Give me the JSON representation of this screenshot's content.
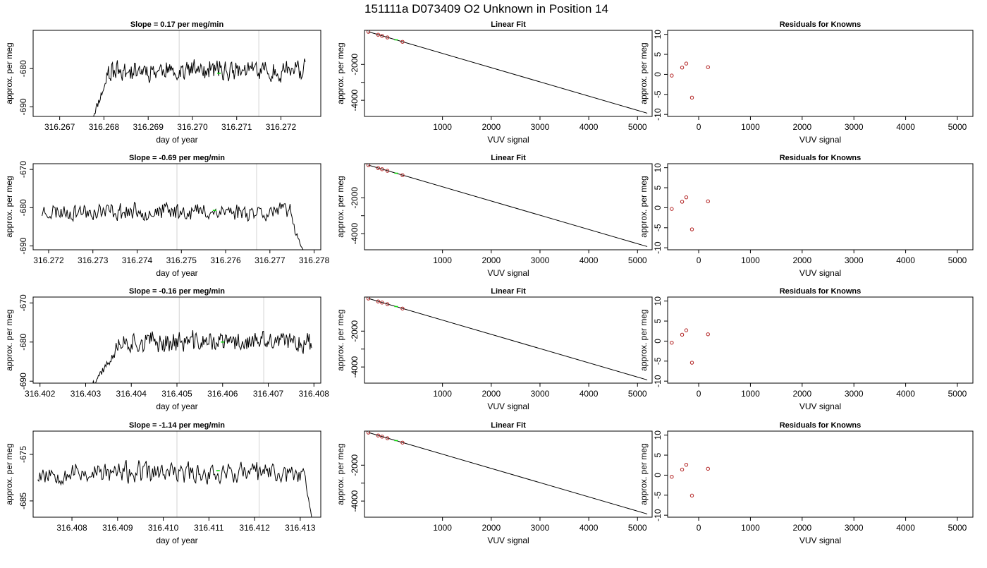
{
  "figure": {
    "title": "151111a      D073409   O2 Unknown in Position  14",
    "colors": {
      "line": "#000000",
      "gridline": "#d3d3d3",
      "known_point": "#b22222",
      "unknown_point": "#00dd00"
    }
  },
  "chart_data": [
    {
      "type": "line",
      "title": "Slope =  0.17  per meg/min",
      "xlabel": "day of year",
      "ylabel": "approx. per meg",
      "xlim": [
        316.2664,
        316.2729
      ],
      "ylim": [
        -692.5,
        -670.0
      ],
      "xticks": [
        316.267,
        316.268,
        316.269,
        316.27,
        316.271,
        316.272
      ],
      "xtick_labels": [
        "316.267",
        "316.268",
        "316.269",
        "316.270",
        "316.271",
        "316.272"
      ],
      "yticks": [
        -690,
        -680
      ],
      "ytick_labels": [
        "-690",
        "-680"
      ],
      "vlines": [
        316.2697,
        316.2715
      ],
      "marker": {
        "x": 316.2706,
        "y": -681.2
      },
      "series": [
        {
          "x_start": 316.26775,
          "x_end": 316.27255,
          "start_value": -692.5,
          "rise_to": 316.26805,
          "mean": -680.5,
          "tail": null,
          "end_value": null,
          "amp": 3.0,
          "seed": 11
        }
      ]
    },
    {
      "type": "scatter",
      "title": "Linear Fit",
      "xlabel": "VUV signal",
      "ylabel": "approx. per meg",
      "xlim": [
        -600,
        5300
      ],
      "ylim": [
        -4900,
        -100
      ],
      "xticks": [
        1000,
        2000,
        3000,
        4000,
        5000
      ],
      "xtick_labels": [
        "1000",
        "2000",
        "3000",
        "4000",
        "5000"
      ],
      "yticks": [
        -4000,
        -3000,
        -2000
      ],
      "ytick_labels": [
        "-4000",
        "",
        "-2000"
      ],
      "fit_line": {
        "x": [
          -520,
          5200
        ],
        "y": [
          -180,
          -4720
        ]
      },
      "knowns": {
        "x": [
          -520,
          -320,
          -240,
          -130,
          180
        ],
        "y": [
          -180,
          -343,
          -408,
          -495,
          -740
        ]
      },
      "unknown": {
        "x": 50,
        "y": -630
      }
    },
    {
      "type": "scatter",
      "title": "Residuals for Knowns",
      "xlabel": "VUV signal",
      "ylabel": "approx. per meg",
      "xlim": [
        -600,
        5300
      ],
      "ylim": [
        -10.5,
        11
      ],
      "xticks": [
        0,
        1000,
        2000,
        3000,
        4000,
        5000
      ],
      "xtick_labels": [
        "0",
        "1000",
        "2000",
        "3000",
        "4000",
        "5000"
      ],
      "yticks": [
        -10,
        -5,
        0,
        5,
        10
      ],
      "ytick_labels": [
        "-10",
        "-5",
        "0",
        "5",
        "10"
      ],
      "knowns": {
        "x": [
          -520,
          -320,
          -240,
          -130,
          180
        ],
        "y": [
          -0.3,
          1.7,
          2.7,
          -5.8,
          1.8
        ]
      }
    },
    {
      "type": "line",
      "title": "Slope =  -0.69  per meg/min",
      "xlabel": "day of year",
      "ylabel": "approx. per meg",
      "xlim": [
        316.27165,
        316.27815
      ],
      "ylim": [
        -691.0,
        -668.5
      ],
      "xticks": [
        316.272,
        316.273,
        316.274,
        316.275,
        316.276,
        316.277,
        316.278
      ],
      "xtick_labels": [
        "316.272",
        "316.273",
        "316.274",
        "316.275",
        "316.276",
        "316.277",
        "316.278"
      ],
      "yticks": [
        -690,
        -680,
        -670
      ],
      "ytick_labels": [
        "-690",
        "-680",
        "-670"
      ],
      "vlines": [
        316.2749,
        316.2767
      ],
      "marker": {
        "x": 316.27575,
        "y": -680.7
      },
      "series": [
        {
          "x_start": 316.27185,
          "x_end": 316.27775,
          "start_value": null,
          "rise_to": null,
          "mean": -681.0,
          "tail": 316.27745,
          "end_value": -691.0,
          "amp": 2.6,
          "seed": 23
        }
      ]
    },
    {
      "type": "scatter",
      "title": "Linear Fit",
      "xlabel": "VUV signal",
      "ylabel": "approx. per meg",
      "xlim": [
        -600,
        5300
      ],
      "ylim": [
        -4900,
        -100
      ],
      "xticks": [
        1000,
        2000,
        3000,
        4000,
        5000
      ],
      "xtick_labels": [
        "1000",
        "2000",
        "3000",
        "4000",
        "5000"
      ],
      "yticks": [
        -4000,
        -3000,
        -2000
      ],
      "ytick_labels": [
        "-4000",
        "",
        "-2000"
      ],
      "fit_line": {
        "x": [
          -520,
          5200
        ],
        "y": [
          -180,
          -4720
        ]
      },
      "knowns": {
        "x": [
          -520,
          -320,
          -240,
          -130,
          180
        ],
        "y": [
          -180,
          -343,
          -408,
          -495,
          -740
        ]
      },
      "unknown": {
        "x": 50,
        "y": -630
      }
    },
    {
      "type": "scatter",
      "title": "Residuals for Knowns",
      "xlabel": "VUV signal",
      "ylabel": "approx. per meg",
      "xlim": [
        -600,
        5300
      ],
      "ylim": [
        -10.5,
        11
      ],
      "xticks": [
        0,
        1000,
        2000,
        3000,
        4000,
        5000
      ],
      "xtick_labels": [
        "0",
        "1000",
        "2000",
        "3000",
        "4000",
        "5000"
      ],
      "yticks": [
        -10,
        -5,
        0,
        5,
        10
      ],
      "ytick_labels": [
        "-10",
        "-5",
        "0",
        "5",
        "10"
      ],
      "knowns": {
        "x": [
          -520,
          -320,
          -240,
          -130,
          180
        ],
        "y": [
          -0.3,
          1.5,
          2.6,
          -5.4,
          1.6
        ]
      }
    },
    {
      "type": "line",
      "title": "Slope =  -0.16  per meg/min",
      "xlabel": "day of year",
      "ylabel": "approx. per meg",
      "xlim": [
        316.40185,
        316.40815
      ],
      "ylim": [
        -690.5,
        -668.5
      ],
      "xticks": [
        316.402,
        316.403,
        316.404,
        316.405,
        316.406,
        316.407,
        316.408
      ],
      "xtick_labels": [
        "316.402",
        "316.403",
        "316.404",
        "316.405",
        "316.406",
        "316.407",
        "316.408"
      ],
      "yticks": [
        -690,
        -680,
        -670
      ],
      "ytick_labels": [
        "-690",
        "-680",
        "-670"
      ],
      "vlines": [
        316.40505,
        316.4069
      ],
      "marker": {
        "x": 316.406,
        "y": -680.0
      },
      "series": [
        {
          "x_start": 316.40315,
          "x_end": 316.40795,
          "start_value": -690.5,
          "rise_to": 316.40365,
          "mean": -680.0,
          "tail": null,
          "end_value": null,
          "amp": 3.0,
          "seed": 37
        }
      ]
    },
    {
      "type": "scatter",
      "title": "Linear Fit",
      "xlabel": "VUV signal",
      "ylabel": "approx. per meg",
      "xlim": [
        -600,
        5300
      ],
      "ylim": [
        -4900,
        -100
      ],
      "xticks": [
        1000,
        2000,
        3000,
        4000,
        5000
      ],
      "xtick_labels": [
        "1000",
        "2000",
        "3000",
        "4000",
        "5000"
      ],
      "yticks": [
        -4000,
        -3000,
        -2000
      ],
      "ytick_labels": [
        "-4000",
        "",
        "-2000"
      ],
      "fit_line": {
        "x": [
          -520,
          5200
        ],
        "y": [
          -180,
          -4720
        ]
      },
      "knowns": {
        "x": [
          -520,
          -320,
          -240,
          -130,
          180
        ],
        "y": [
          -180,
          -343,
          -408,
          -495,
          -740
        ]
      },
      "unknown": {
        "x": 50,
        "y": -630
      }
    },
    {
      "type": "scatter",
      "title": "Residuals for Knowns",
      "xlabel": "VUV signal",
      "ylabel": "approx. per meg",
      "xlim": [
        -600,
        5300
      ],
      "ylim": [
        -10.5,
        11
      ],
      "xticks": [
        0,
        1000,
        2000,
        3000,
        4000,
        5000
      ],
      "xtick_labels": [
        "0",
        "1000",
        "2000",
        "3000",
        "4000",
        "5000"
      ],
      "yticks": [
        -10,
        -5,
        0,
        5,
        10
      ],
      "ytick_labels": [
        "-10",
        "-5",
        "0",
        "5",
        "10"
      ],
      "knowns": {
        "x": [
          -520,
          -320,
          -240,
          -130,
          180
        ],
        "y": [
          -0.4,
          1.6,
          2.7,
          -5.4,
          1.7
        ]
      }
    },
    {
      "type": "line",
      "title": "Slope =  -1.14  per meg/min",
      "xlabel": "day of year",
      "ylabel": "approx. per meg",
      "xlim": [
        316.40715,
        316.41345
      ],
      "ylim": [
        -688.5,
        -670.0
      ],
      "xticks": [
        316.408,
        316.409,
        316.41,
        316.411,
        316.412,
        316.413
      ],
      "xtick_labels": [
        "316.408",
        "316.409",
        "316.410",
        "316.411",
        "316.412",
        "316.413"
      ],
      "yticks": [
        -685,
        -675
      ],
      "ytick_labels": [
        "-685",
        "-675"
      ],
      "vlines": [
        316.4103,
        316.4121
      ],
      "marker": {
        "x": 316.4112,
        "y": -678.5
      },
      "series": [
        {
          "x_start": 316.40725,
          "x_end": 316.41325,
          "start_value": null,
          "rise_to": null,
          "mean": -679.0,
          "tail": 316.4131,
          "end_value": -688.5,
          "amp": 2.6,
          "seed": 53
        }
      ]
    },
    {
      "type": "scatter",
      "title": "Linear Fit",
      "xlabel": "VUV signal",
      "ylabel": "approx. per meg",
      "xlim": [
        -600,
        5300
      ],
      "ylim": [
        -4900,
        -100
      ],
      "xticks": [
        1000,
        2000,
        3000,
        4000,
        5000
      ],
      "xtick_labels": [
        "1000",
        "2000",
        "3000",
        "4000",
        "5000"
      ],
      "yticks": [
        -4000,
        -3000,
        -2000
      ],
      "ytick_labels": [
        "-4000",
        "",
        "-2000"
      ],
      "fit_line": {
        "x": [
          -520,
          5200
        ],
        "y": [
          -180,
          -4720
        ]
      },
      "knowns": {
        "x": [
          -520,
          -320,
          -240,
          -130,
          180
        ],
        "y": [
          -180,
          -343,
          -408,
          -495,
          -740
        ]
      },
      "unknown": {
        "x": 50,
        "y": -630
      }
    },
    {
      "type": "scatter",
      "title": "Residuals for Knowns",
      "xlabel": "VUV signal",
      "ylabel": "approx. per meg",
      "xlim": [
        -600,
        5300
      ],
      "ylim": [
        -10.5,
        11
      ],
      "xticks": [
        0,
        1000,
        2000,
        3000,
        4000,
        5000
      ],
      "xtick_labels": [
        "0",
        "1000",
        "2000",
        "3000",
        "4000",
        "5000"
      ],
      "yticks": [
        -10,
        -5,
        0,
        5,
        10
      ],
      "ytick_labels": [
        "-10",
        "-5",
        "0",
        "5",
        "10"
      ],
      "knowns": {
        "x": [
          -520,
          -320,
          -240,
          -130,
          180
        ],
        "y": [
          -0.4,
          1.4,
          2.6,
          -5.1,
          1.6
        ]
      }
    }
  ]
}
